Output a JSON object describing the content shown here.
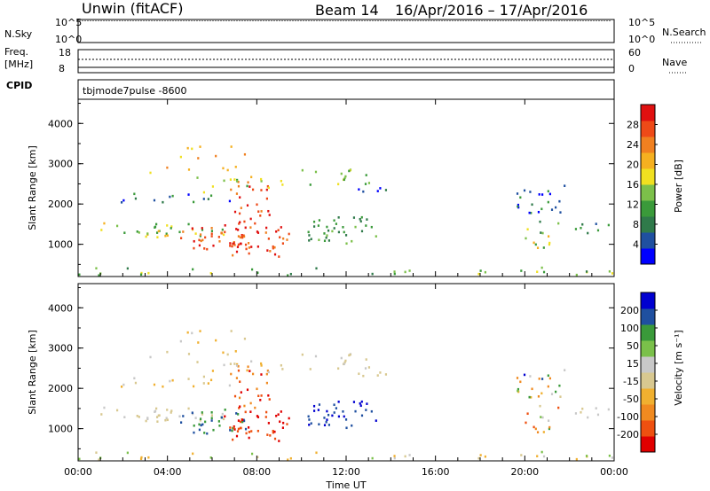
{
  "header": {
    "site": "Unwin (fitACF)",
    "beam": "Beam 14",
    "dates": "16/Apr/2016 – 17/Apr/2016"
  },
  "strips": {
    "nsky_label": "N.Sky",
    "nsky_ticks": [
      "10^5",
      "10^0"
    ],
    "nsearch_label": "N.Search",
    "nsearch_ticks": [
      "10^5",
      "10^0"
    ],
    "freq_label_1": "Freq.",
    "freq_label_2": "[MHz]",
    "freq_ticks": [
      "18",
      "8"
    ],
    "nave_label": "Nave",
    "nave_ticks": [
      "60",
      "0"
    ],
    "cpid_label": "CPID",
    "cpid_value": "tbjmode7pulse  -8600"
  },
  "chart_data": [
    {
      "type": "heatmap",
      "name": "power",
      "ylabel": "Slant Range [km]",
      "yticks": [
        "4000",
        "3000",
        "2000",
        "1000"
      ],
      "ytick_values": [
        4000,
        3000,
        2000,
        1000
      ],
      "ylim": [
        200,
        4600
      ],
      "xlim_hours": [
        0,
        24
      ],
      "colorbar": {
        "label": "Power [dB]",
        "ticks": [
          "28",
          "24",
          "20",
          "16",
          "12",
          "8",
          "4"
        ],
        "colors": [
          "#0000ff",
          "#1f50a0",
          "#2f7a4a",
          "#3a9a3a",
          "#7cc04a",
          "#f0e020",
          "#f5b020",
          "#f08020",
          "#ee4a18",
          "#e01010"
        ]
      }
    },
    {
      "type": "heatmap",
      "name": "velocity",
      "ylabel": "Slant Range [km]",
      "yticks": [
        "4000",
        "3000",
        "2000",
        "1000"
      ],
      "ytick_values": [
        4000,
        3000,
        2000,
        1000
      ],
      "ylim": [
        200,
        4600
      ],
      "xlim_hours": [
        0,
        24
      ],
      "xlabel": "Time UT",
      "xticks": [
        "00:00",
        "04:00",
        "08:00",
        "12:00",
        "16:00",
        "20:00",
        "00:00"
      ],
      "xtick_hours": [
        0,
        4,
        8,
        12,
        16,
        20,
        24
      ],
      "colorbar": {
        "label": "Velocity [m s⁻¹]",
        "ticks": [
          "200",
          "100",
          "50",
          "15",
          "-15",
          "-50",
          "-100",
          "-200"
        ],
        "colors": [
          "#e00000",
          "#ee5010",
          "#f08a20",
          "#f0b030",
          "#d8c890",
          "#c8c8c8",
          "#7ac04a",
          "#3a9a3a",
          "#1f50a0",
          "#0000d0"
        ]
      }
    }
  ]
}
